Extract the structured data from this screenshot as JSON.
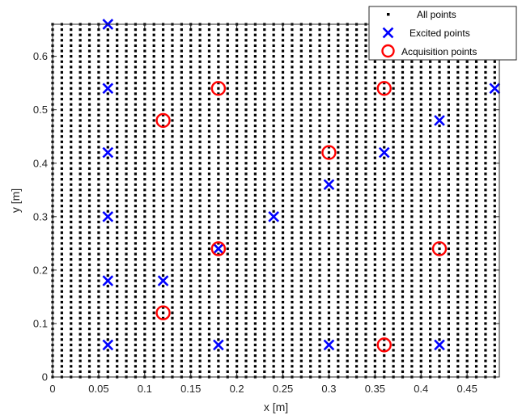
{
  "chart_data": {
    "type": "scatter",
    "xlabel": "x [m]",
    "ylabel": "y [m]",
    "xlim": [
      0,
      0.485
    ],
    "ylim": [
      0,
      0.66
    ],
    "xticks": [
      "0",
      "0.05",
      "0.1",
      "0.15",
      "0.2",
      "0.25",
      "0.3",
      "0.35",
      "0.4",
      "0.45"
    ],
    "yticks": [
      "0",
      "0.1",
      "0.2",
      "0.3",
      "0.4",
      "0.5",
      "0.6"
    ],
    "legend_position": "top-right",
    "series": [
      {
        "name": "All points",
        "marker": "dot",
        "color": "#000000",
        "grid": {
          "x_start": 0,
          "x_end": 0.48,
          "x_count": 49,
          "y_start": 0,
          "y_end": 0.66,
          "y_count": 67
        }
      },
      {
        "name": "Excited points",
        "marker": "x",
        "color": "#0000ff",
        "points": [
          [
            0.06,
            0.66
          ],
          [
            0.06,
            0.54
          ],
          [
            0.06,
            0.42
          ],
          [
            0.06,
            0.3
          ],
          [
            0.06,
            0.18
          ],
          [
            0.06,
            0.06
          ],
          [
            0.12,
            0.18
          ],
          [
            0.18,
            0.24
          ],
          [
            0.18,
            0.06
          ],
          [
            0.24,
            0.3
          ],
          [
            0.3,
            0.36
          ],
          [
            0.3,
            0.06
          ],
          [
            0.36,
            0.42
          ],
          [
            0.42,
            0.48
          ],
          [
            0.42,
            0.06
          ],
          [
            0.48,
            0.54
          ]
        ]
      },
      {
        "name": "Acquisition points",
        "marker": "circle",
        "color": "#ff0000",
        "points": [
          [
            0.12,
            0.48
          ],
          [
            0.12,
            0.12
          ],
          [
            0.18,
            0.54
          ],
          [
            0.18,
            0.24
          ],
          [
            0.3,
            0.42
          ],
          [
            0.36,
            0.54
          ],
          [
            0.36,
            0.06
          ],
          [
            0.42,
            0.24
          ]
        ]
      }
    ]
  }
}
